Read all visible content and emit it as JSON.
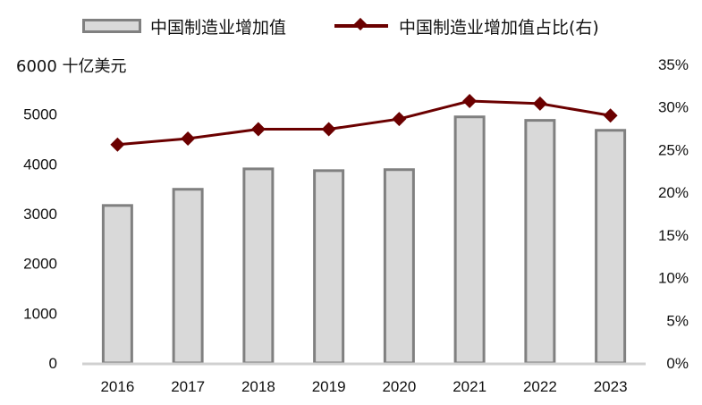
{
  "legend": {
    "bar_label": "中国制造业增加值",
    "line_label": "中国制造业增加值占比(右)"
  },
  "left_axis_unit": "十亿美元",
  "colors": {
    "bar_fill": "#d9d9d9",
    "bar_border": "#808080",
    "line": "#6b0000",
    "axis": "#d0d0d0"
  },
  "chart_data": {
    "type": "bar",
    "title": "",
    "xlabel": "",
    "ylabel": "十亿美元",
    "y2label": "",
    "categories": [
      "2016",
      "2017",
      "2018",
      "2019",
      "2020",
      "2021",
      "2022",
      "2023"
    ],
    "series": [
      {
        "name": "中国制造业增加值",
        "type": "bar",
        "axis": "left",
        "values": [
          3165,
          3490,
          3900,
          3865,
          3885,
          4945,
          4875,
          4675
        ]
      },
      {
        "name": "中国制造业增加值占比(右)",
        "type": "line",
        "axis": "right",
        "unit": "%",
        "values": [
          25.6,
          26.3,
          27.4,
          27.4,
          28.6,
          30.7,
          30.4,
          29.0
        ]
      }
    ],
    "ylim": [
      0,
      6000
    ],
    "y_ticks": [
      "0",
      "1000",
      "2000",
      "3000",
      "4000",
      "5000",
      "6000"
    ],
    "y2lim": [
      0,
      35
    ],
    "y2_ticks": [
      "0%",
      "5%",
      "10%",
      "15%",
      "20%",
      "25%",
      "30%",
      "35%"
    ],
    "grid": false,
    "legend_position": "top"
  }
}
